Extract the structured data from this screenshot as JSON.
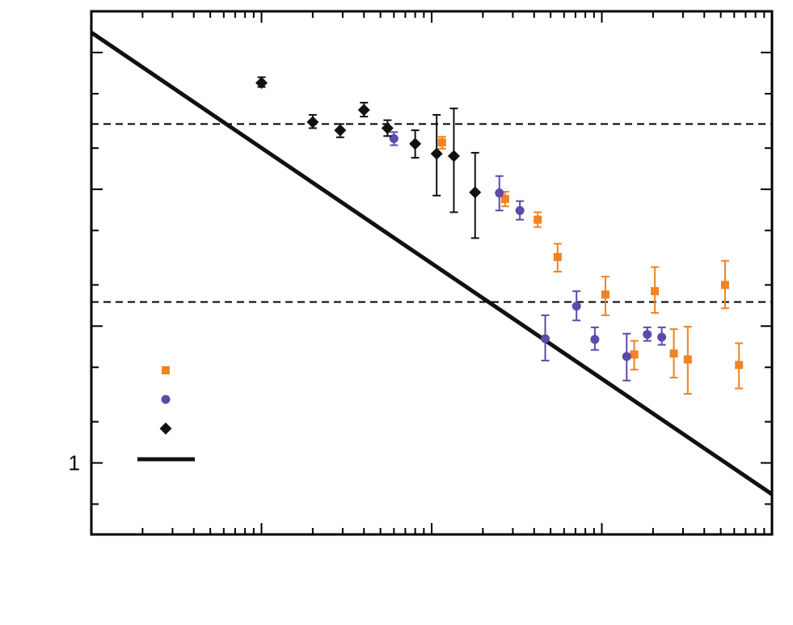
{
  "chart_data": {
    "type": "scatter",
    "x_scale": "log",
    "y_scale": "log",
    "xlim": [
      1,
      10000
    ],
    "ylim": [
      0.3,
      2000
    ],
    "y_tick_labels": [
      {
        "value": 1,
        "label": "1"
      }
    ],
    "reference_lines": [
      {
        "y": 300,
        "style": "dashed"
      },
      {
        "y": 15,
        "style": "dashed"
      }
    ],
    "series": [
      {
        "marker": "square",
        "color": "#f08322",
        "points": [
          {
            "x": 115,
            "y": 220,
            "ylo": 198,
            "yhi": 242
          },
          {
            "x": 270,
            "y": 85,
            "ylo": 75,
            "yhi": 96
          },
          {
            "x": 420,
            "y": 60,
            "ylo": 53,
            "yhi": 68
          },
          {
            "x": 550,
            "y": 32,
            "ylo": 25,
            "yhi": 40
          },
          {
            "x": 1050,
            "y": 17,
            "ylo": 12,
            "yhi": 23
          },
          {
            "x": 1550,
            "y": 6.2,
            "ylo": 4.8,
            "yhi": 7.8
          },
          {
            "x": 2050,
            "y": 18,
            "ylo": 12.5,
            "yhi": 27
          },
          {
            "x": 2650,
            "y": 6.3,
            "ylo": 4.2,
            "yhi": 9.5
          },
          {
            "x": 3200,
            "y": 5.7,
            "ylo": 3.2,
            "yhi": 9.9
          },
          {
            "x": 5300,
            "y": 20,
            "ylo": 13.5,
            "yhi": 30
          },
          {
            "x": 6400,
            "y": 5.2,
            "ylo": 3.5,
            "yhi": 7.5
          }
        ]
      },
      {
        "marker": "circle",
        "color": "#5e4aaa",
        "points": [
          {
            "x": 60,
            "y": 235,
            "ylo": 210,
            "yhi": 262
          },
          {
            "x": 250,
            "y": 94,
            "ylo": 70,
            "yhi": 125
          },
          {
            "x": 330,
            "y": 70,
            "ylo": 60,
            "yhi": 82
          },
          {
            "x": 465,
            "y": 8.1,
            "ylo": 5.6,
            "yhi": 12
          },
          {
            "x": 710,
            "y": 14,
            "ylo": 11,
            "yhi": 18
          },
          {
            "x": 910,
            "y": 8.0,
            "ylo": 6.7,
            "yhi": 9.8
          },
          {
            "x": 1400,
            "y": 6.0,
            "ylo": 4.0,
            "yhi": 8.8
          },
          {
            "x": 1850,
            "y": 8.7,
            "ylo": 7.8,
            "yhi": 9.8
          },
          {
            "x": 2250,
            "y": 8.3,
            "ylo": 7.3,
            "yhi": 9.8
          }
        ]
      },
      {
        "marker": "diamond",
        "color": "#111111",
        "points": [
          {
            "x": 10,
            "y": 600,
            "ylo": 560,
            "yhi": 660
          },
          {
            "x": 20,
            "y": 310,
            "ylo": 280,
            "yhi": 350
          },
          {
            "x": 29,
            "y": 270,
            "ylo": 240,
            "yhi": 300
          },
          {
            "x": 40,
            "y": 380,
            "ylo": 340,
            "yhi": 430
          },
          {
            "x": 55,
            "y": 280,
            "ylo": 245,
            "yhi": 320
          },
          {
            "x": 80,
            "y": 215,
            "ylo": 170,
            "yhi": 270
          },
          {
            "x": 107,
            "y": 182,
            "ylo": 90,
            "yhi": 350
          },
          {
            "x": 135,
            "y": 175,
            "ylo": 68,
            "yhi": 390
          },
          {
            "x": 180,
            "y": 95,
            "ylo": 44,
            "yhi": 185
          }
        ]
      }
    ],
    "fit_line": {
      "color": "#111111",
      "points": [
        {
          "x": 1,
          "y": 1400
        },
        {
          "x": 10000,
          "y": 0.59
        }
      ]
    }
  }
}
